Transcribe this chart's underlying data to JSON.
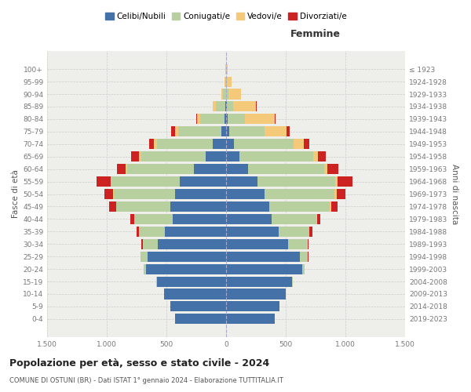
{
  "age_groups": [
    "0-4",
    "5-9",
    "10-14",
    "15-19",
    "20-24",
    "25-29",
    "30-34",
    "35-39",
    "40-44",
    "45-49",
    "50-54",
    "55-59",
    "60-64",
    "65-69",
    "70-74",
    "75-79",
    "80-84",
    "85-89",
    "90-94",
    "95-99",
    "100+"
  ],
  "birth_years": [
    "2019-2023",
    "2014-2018",
    "2009-2013",
    "2004-2008",
    "1999-2003",
    "1994-1998",
    "1989-1993",
    "1984-1988",
    "1979-1983",
    "1974-1978",
    "1969-1973",
    "1964-1968",
    "1959-1963",
    "1954-1958",
    "1949-1953",
    "1944-1948",
    "1939-1943",
    "1934-1938",
    "1929-1933",
    "1924-1928",
    "≤ 1923"
  ],
  "males": {
    "celibi": [
      430,
      465,
      520,
      580,
      670,
      660,
      570,
      510,
      450,
      470,
      430,
      390,
      270,
      170,
      110,
      40,
      15,
      6,
      2,
      1,
      0
    ],
    "coniugati": [
      0,
      0,
      0,
      4,
      18,
      55,
      130,
      220,
      320,
      450,
      510,
      570,
      560,
      540,
      470,
      360,
      200,
      80,
      22,
      7,
      2
    ],
    "vedovi": [
      0,
      0,
      0,
      0,
      0,
      0,
      0,
      2,
      2,
      4,
      5,
      8,
      12,
      18,
      22,
      28,
      28,
      25,
      15,
      7,
      2
    ],
    "divorziati": [
      0,
      0,
      0,
      0,
      2,
      4,
      8,
      18,
      28,
      55,
      75,
      115,
      75,
      65,
      45,
      30,
      8,
      4,
      1,
      0,
      0
    ]
  },
  "females": {
    "nubili": [
      410,
      445,
      500,
      555,
      635,
      620,
      520,
      440,
      380,
      360,
      320,
      260,
      185,
      115,
      65,
      25,
      10,
      5,
      3,
      1,
      0
    ],
    "coniugate": [
      0,
      0,
      0,
      4,
      22,
      65,
      160,
      255,
      375,
      510,
      590,
      655,
      635,
      615,
      500,
      295,
      145,
      52,
      15,
      5,
      1
    ],
    "vedove": [
      0,
      0,
      0,
      0,
      0,
      2,
      4,
      4,
      8,
      9,
      18,
      22,
      28,
      42,
      85,
      185,
      255,
      195,
      105,
      42,
      10
    ],
    "divorziate": [
      0,
      0,
      0,
      0,
      2,
      7,
      10,
      22,
      28,
      55,
      75,
      120,
      90,
      65,
      45,
      25,
      6,
      3,
      1,
      0,
      0
    ]
  },
  "colors": {
    "celibi": "#4472a8",
    "coniugati": "#b8cfa0",
    "vedovi": "#f5c97a",
    "divorziati": "#cc2222"
  },
  "legend_labels": [
    "Celibi/Nubili",
    "Coniugati/e",
    "Vedovi/e",
    "Divorziati/e"
  ],
  "title": "Popolazione per età, sesso e stato civile - 2024",
  "subtitle": "COMUNE DI OSTUNI (BR) - Dati ISTAT 1° gennaio 2024 - Elaborazione TUTTITALIA.IT",
  "xlabel_right": "Femmine",
  "ylabel_left": "Fasce di età",
  "ylabel_right": "Anni di nascita",
  "xlim": 1500,
  "bg_color": "#ffffff",
  "plot_bg_color": "#eeeeea"
}
